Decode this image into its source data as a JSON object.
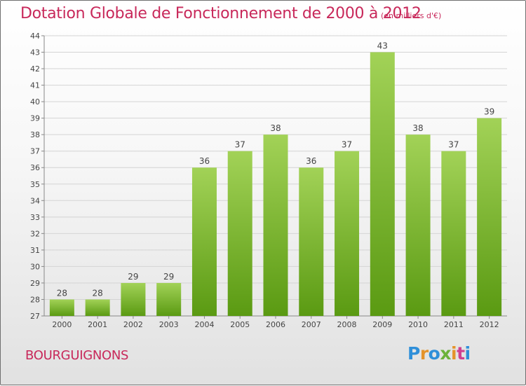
{
  "header": {
    "title": "Dotation Globale de Fonctionnement de 2000 à 2012",
    "unit": "(en milliers d'€)"
  },
  "footer": {
    "commune": "BOURGUIGNONS",
    "logo_letters": [
      "P",
      "r",
      "o",
      "x",
      "i",
      "t",
      "i"
    ]
  },
  "colors": {
    "title": "#c8285a",
    "bar_top": "#a2d257",
    "bar_bottom": "#5a9a12",
    "grid": "#d4d4d4"
  },
  "chart_data": {
    "type": "bar",
    "title": "Dotation Globale de Fonctionnement de 2000 à 2012",
    "xlabel": "",
    "ylabel": "",
    "categories": [
      "2000",
      "2001",
      "2002",
      "2003",
      "2004",
      "2005",
      "2006",
      "2007",
      "2008",
      "2009",
      "2010",
      "2011",
      "2012"
    ],
    "values": [
      28,
      28,
      29,
      29,
      36,
      37,
      38,
      36,
      37,
      43,
      38,
      37,
      39
    ],
    "ylim": [
      27,
      44
    ],
    "yticks": [
      27,
      28,
      29,
      30,
      31,
      32,
      33,
      34,
      35,
      36,
      37,
      38,
      39,
      40,
      41,
      42,
      43,
      44
    ],
    "grid": true,
    "data_labels": true,
    "legend": "none"
  }
}
